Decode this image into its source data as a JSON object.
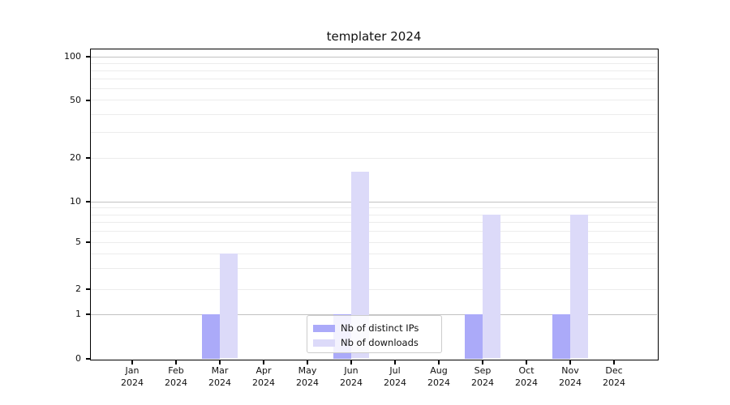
{
  "chart_data": {
    "type": "bar",
    "title": "templater 2024",
    "categories": [
      "Jan",
      "Feb",
      "Mar",
      "Apr",
      "May",
      "Jun",
      "Jul",
      "Aug",
      "Sep",
      "Oct",
      "Nov",
      "Dec"
    ],
    "year_label": "2024",
    "series": [
      {
        "name": "Nb of distinct IPs",
        "color": "#abaaf9",
        "values": [
          0,
          0,
          1,
          0,
          0,
          1,
          0,
          0,
          1,
          0,
          1,
          0
        ]
      },
      {
        "name": "Nb of downloads",
        "color": "#dcdaf9",
        "values": [
          0,
          0,
          4,
          0,
          0,
          16,
          0,
          0,
          8,
          0,
          8,
          0
        ]
      }
    ],
    "yticks": [
      0,
      1,
      2,
      5,
      10,
      20,
      50,
      100
    ],
    "ylim": [
      0,
      100
    ],
    "yscale": "log",
    "xlabel": "",
    "ylabel": "",
    "grid": true,
    "legend_position": "bottom-center",
    "colors": {
      "major_grid": "#c2c2c2",
      "minor_grid": "#ececec",
      "spine": "#000000",
      "background": "#ffffff"
    }
  }
}
